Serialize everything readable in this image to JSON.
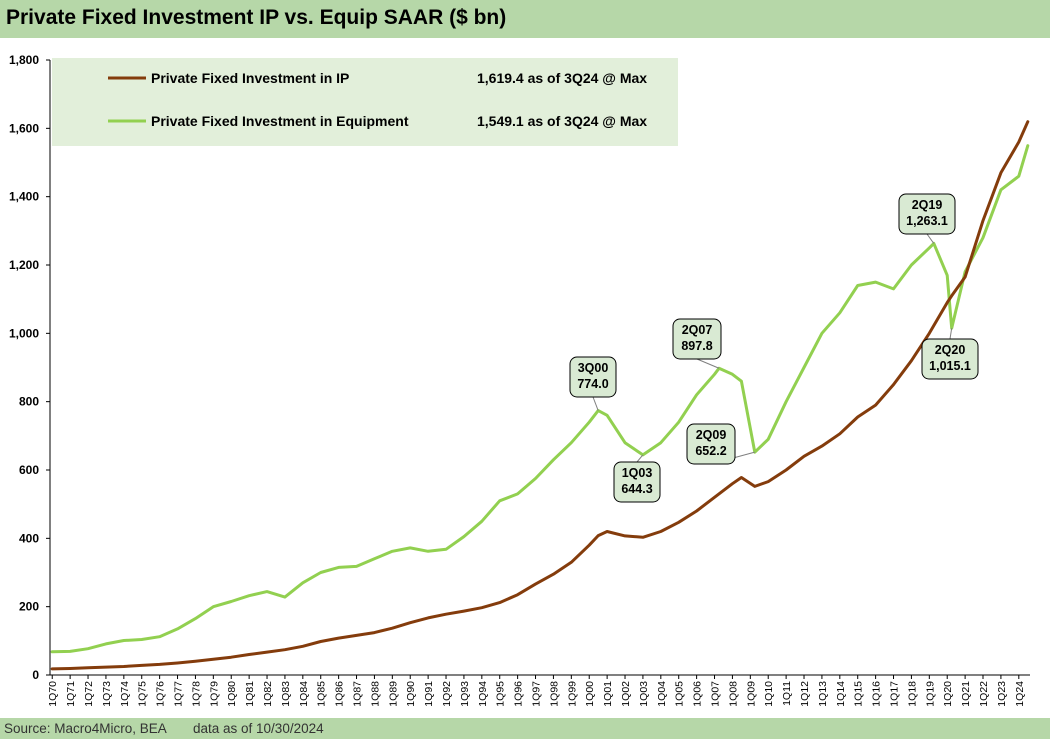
{
  "title": "Private Fixed Investment IP vs. Equip SAAR ($ bn)",
  "footer": {
    "source": "Source: Macro4Micro, BEA",
    "date": "data as of 10/30/2024"
  },
  "colors": {
    "ip": "#843c0c",
    "equipment": "#92d050",
    "header_band": "#b6d7a8",
    "legend_bg": "#e2efda",
    "annotation_bg": "#d9ead3"
  },
  "chart_data": {
    "type": "line",
    "title": "Private Fixed Investment IP vs. Equip SAAR ($ bn)",
    "xlabel": "",
    "ylabel": "",
    "ylim": [
      0,
      1800
    ],
    "yticks": [
      "0",
      "200",
      "400",
      "600",
      "800",
      "1,000",
      "1,200",
      "1,400",
      "1,600",
      "1,800"
    ],
    "ytick_values": [
      0,
      200,
      400,
      600,
      800,
      1000,
      1200,
      1400,
      1600,
      1800
    ],
    "grid": false,
    "legend_position": "top-left",
    "x_start": "1Q70",
    "x_end": "3Q24",
    "x_tick_labels": [
      "1Q70",
      "1Q71",
      "1Q72",
      "1Q73",
      "1Q74",
      "1Q75",
      "1Q76",
      "1Q77",
      "1Q78",
      "1Q79",
      "1Q80",
      "1Q81",
      "1Q82",
      "1Q83",
      "1Q84",
      "1Q85",
      "1Q86",
      "1Q87",
      "1Q88",
      "1Q89",
      "1Q90",
      "1Q91",
      "1Q92",
      "1Q93",
      "1Q94",
      "1Q95",
      "1Q96",
      "1Q97",
      "1Q98",
      "1Q99",
      "1Q00",
      "1Q01",
      "1Q02",
      "1Q03",
      "1Q04",
      "1Q05",
      "1Q06",
      "1Q07",
      "1Q08",
      "1Q09",
      "1Q10",
      "1Q11",
      "1Q12",
      "1Q13",
      "1Q14",
      "1Q15",
      "1Q16",
      "1Q17",
      "1Q18",
      "1Q19",
      "1Q20",
      "1Q21",
      "1Q22",
      "1Q23",
      "1Q24"
    ],
    "series": [
      {
        "name": "Private Fixed Investment in IP",
        "legend_value": "1,619.4 as of 3Q24 @ Max",
        "color": "#843c0c",
        "points": [
          [
            "1Q70",
            18
          ],
          [
            "1Q71",
            19
          ],
          [
            "1Q72",
            21
          ],
          [
            "1Q73",
            23
          ],
          [
            "1Q74",
            25
          ],
          [
            "1Q75",
            28
          ],
          [
            "1Q76",
            31
          ],
          [
            "1Q77",
            35
          ],
          [
            "1Q78",
            40
          ],
          [
            "1Q79",
            46
          ],
          [
            "1Q80",
            52
          ],
          [
            "1Q81",
            60
          ],
          [
            "1Q82",
            67
          ],
          [
            "1Q83",
            74
          ],
          [
            "1Q84",
            84
          ],
          [
            "1Q85",
            98
          ],
          [
            "1Q86",
            108
          ],
          [
            "1Q87",
            116
          ],
          [
            "1Q88",
            124
          ],
          [
            "1Q89",
            137
          ],
          [
            "1Q90",
            153
          ],
          [
            "1Q91",
            167
          ],
          [
            "1Q92",
            178
          ],
          [
            "1Q93",
            187
          ],
          [
            "1Q94",
            197
          ],
          [
            "1Q95",
            212
          ],
          [
            "1Q96",
            235
          ],
          [
            "1Q97",
            266
          ],
          [
            "1Q98",
            295
          ],
          [
            "1Q99",
            330
          ],
          [
            "1Q00",
            380
          ],
          [
            "3Q00",
            408
          ],
          [
            "1Q01",
            420
          ],
          [
            "1Q02",
            407
          ],
          [
            "1Q03",
            403
          ],
          [
            "1Q04",
            420
          ],
          [
            "1Q05",
            447
          ],
          [
            "1Q06",
            480
          ],
          [
            "1Q07",
            520
          ],
          [
            "1Q08",
            560
          ],
          [
            "3Q08",
            578
          ],
          [
            "2Q09",
            552
          ],
          [
            "1Q10",
            566
          ],
          [
            "1Q11",
            600
          ],
          [
            "1Q12",
            640
          ],
          [
            "1Q13",
            670
          ],
          [
            "1Q14",
            706
          ],
          [
            "1Q15",
            755
          ],
          [
            "1Q16",
            790
          ],
          [
            "1Q17",
            850
          ],
          [
            "1Q18",
            920
          ],
          [
            "1Q19",
            1000
          ],
          [
            "1Q20",
            1090
          ],
          [
            "2Q20",
            1110
          ],
          [
            "1Q21",
            1165
          ],
          [
            "1Q22",
            1330
          ],
          [
            "1Q23",
            1470
          ],
          [
            "1Q24",
            1560
          ],
          [
            "3Q24",
            1619.4
          ]
        ]
      },
      {
        "name": "Private Fixed Investment in Equipment",
        "legend_value": "1,549.1 as of 3Q24 @ Max",
        "color": "#92d050",
        "points": [
          [
            "1Q70",
            68
          ],
          [
            "1Q71",
            69
          ],
          [
            "1Q72",
            77
          ],
          [
            "1Q73",
            91
          ],
          [
            "1Q74",
            101
          ],
          [
            "1Q75",
            104
          ],
          [
            "1Q76",
            112
          ],
          [
            "1Q77",
            135
          ],
          [
            "1Q78",
            165
          ],
          [
            "1Q79",
            200
          ],
          [
            "1Q80",
            215
          ],
          [
            "1Q81",
            232
          ],
          [
            "1Q82",
            244
          ],
          [
            "1Q83",
            228
          ],
          [
            "1Q84",
            270
          ],
          [
            "1Q85",
            300
          ],
          [
            "1Q86",
            315
          ],
          [
            "1Q87",
            318
          ],
          [
            "1Q88",
            340
          ],
          [
            "1Q89",
            362
          ],
          [
            "1Q90",
            372
          ],
          [
            "1Q91",
            362
          ],
          [
            "1Q92",
            368
          ],
          [
            "1Q93",
            405
          ],
          [
            "1Q94",
            450
          ],
          [
            "1Q95",
            510
          ],
          [
            "1Q96",
            530
          ],
          [
            "1Q97",
            575
          ],
          [
            "1Q98",
            630
          ],
          [
            "1Q99",
            680
          ],
          [
            "1Q00",
            740
          ],
          [
            "3Q00",
            774
          ],
          [
            "1Q01",
            760
          ],
          [
            "1Q02",
            680
          ],
          [
            "1Q03",
            644.3
          ],
          [
            "1Q04",
            680
          ],
          [
            "1Q05",
            740
          ],
          [
            "1Q06",
            820
          ],
          [
            "1Q07",
            880
          ],
          [
            "2Q07",
            897.8
          ],
          [
            "1Q08",
            880
          ],
          [
            "3Q08",
            860
          ],
          [
            "2Q09",
            652.2
          ],
          [
            "1Q10",
            690
          ],
          [
            "1Q11",
            800
          ],
          [
            "1Q12",
            900
          ],
          [
            "1Q13",
            1000
          ],
          [
            "1Q14",
            1060
          ],
          [
            "1Q15",
            1140
          ],
          [
            "1Q16",
            1150
          ],
          [
            "1Q17",
            1130
          ],
          [
            "1Q18",
            1200
          ],
          [
            "1Q19",
            1250
          ],
          [
            "2Q19",
            1263.1
          ],
          [
            "1Q20",
            1170
          ],
          [
            "2Q20",
            1015.1
          ],
          [
            "1Q21",
            1180
          ],
          [
            "1Q22",
            1280
          ],
          [
            "1Q23",
            1420
          ],
          [
            "1Q24",
            1460
          ],
          [
            "3Q24",
            1549.1
          ]
        ]
      }
    ],
    "annotations": [
      {
        "period": "3Q00",
        "lines": [
          "3Q00",
          "774.0"
        ]
      },
      {
        "period": "1Q03",
        "lines": [
          "1Q03",
          "644.3"
        ]
      },
      {
        "period": "2Q07",
        "lines": [
          "2Q07",
          "897.8"
        ]
      },
      {
        "period": "2Q09",
        "lines": [
          "2Q09",
          "652.2"
        ]
      },
      {
        "period": "2Q19",
        "lines": [
          "2Q19",
          "1,263.1"
        ]
      },
      {
        "period": "2Q20",
        "lines": [
          "2Q20",
          "1,015.1"
        ]
      }
    ]
  }
}
